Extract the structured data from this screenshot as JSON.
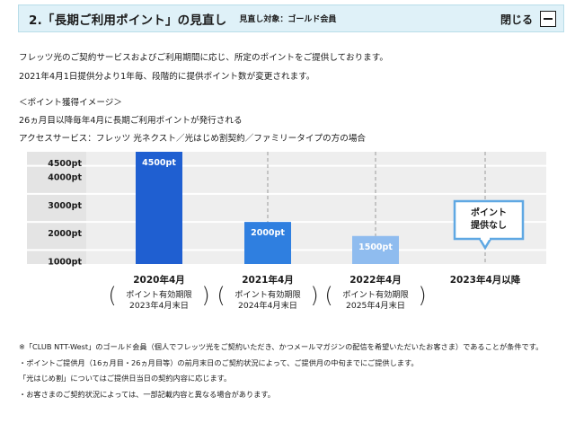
{
  "header": {
    "title": "2.「長期ご利用ポイント」の見直し",
    "subtitle": "見直し対象：ゴールド会員",
    "close_label": "閉じる",
    "close_icon": "minus-icon"
  },
  "intro": [
    "フレッツ光のご契約サービスおよびご利用期間に応じ、所定のポイントをご提供しております。",
    "2021年4月1日提供分より1年毎、段階的に提供ポイント数が変更されます。"
  ],
  "image_section": {
    "heading": "＜ポイント獲得イメージ＞",
    "condition": "26ヵ月目以降毎年4月に長期ご利用ポイントが発行される",
    "access": "アクセスサービス：フレッツ 光ネクスト／光はじめ割契約／ファミリータイプの方の場合"
  },
  "chart_data": {
    "type": "bar",
    "categories": [
      "2020年4月",
      "2021年4月",
      "2022年4月",
      "2023年4月以降"
    ],
    "values": [
      4500,
      2000,
      1500,
      0
    ],
    "value_labels": [
      "4500pt",
      "2000pt",
      "1500pt",
      ""
    ],
    "bar_colors": [
      "#1f5fd1",
      "#2f7fe0",
      "#8fbcef",
      ""
    ],
    "y_ticks": [
      1000,
      2000,
      3000,
      4000,
      4500
    ],
    "y_tick_labels": [
      "1000pt",
      "2000pt",
      "3000pt",
      "4000pt",
      "4500pt"
    ],
    "ylim": [
      500,
      4500
    ],
    "annotation": "ポイント\n提供なし",
    "sublabels": [
      [
        "ポイント有効期限",
        "2023年4月末日"
      ],
      [
        "ポイント有効期限",
        "2024年4月末日"
      ],
      [
        "ポイント有効期限",
        "2025年4月末日"
      ],
      []
    ],
    "grid": true,
    "title": "",
    "xlabel": "",
    "ylabel": ""
  },
  "notes": [
    "※「CLUB NTT-West」のゴールド会員（個人でフレッツ光をご契約いただき、かつメールマガジンの配信を希望いただいたお客さま）であることが条件です。",
    "・ポイントご提供月（16ヵ月目・26ヵ月目等）の前月末日のご契約状況によって、ご提供月の中旬までにご提供します。",
    "「光はじめ割」についてはご提供日当日の契約内容に応じます。",
    "・お客さまのご契約状況によっては、一部記載内容と異なる場合があります。"
  ]
}
